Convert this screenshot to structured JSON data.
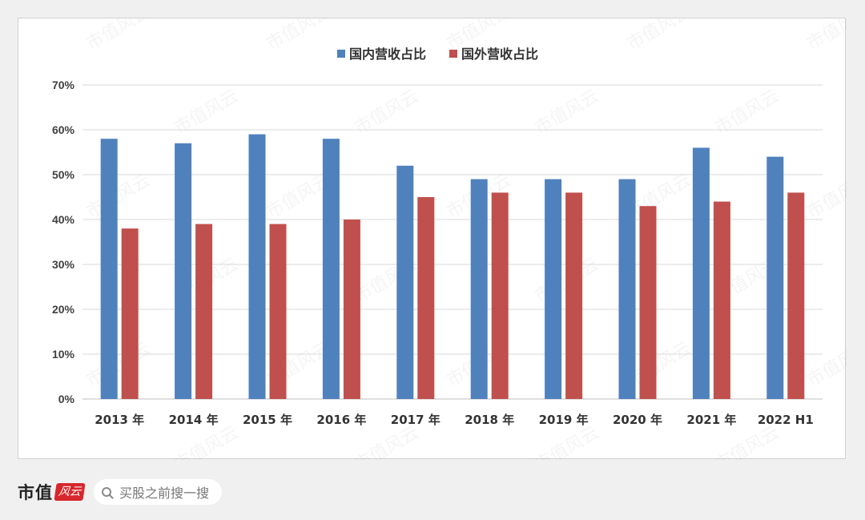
{
  "chart_data": {
    "type": "bar",
    "categories": [
      "2013 年",
      "2014 年",
      "2015 年",
      "2016 年",
      "2017 年",
      "2018 年",
      "2019 年",
      "2020 年",
      "2021 年",
      "2022 H1"
    ],
    "series": [
      {
        "name": "国内营收占比",
        "color": "#4f81bd",
        "values": [
          58,
          57,
          59,
          58,
          52,
          49,
          49,
          49,
          56,
          54
        ]
      },
      {
        "name": "国外营收占比",
        "color": "#c0504d",
        "values": [
          38,
          39,
          39,
          40,
          45,
          46,
          46,
          43,
          44,
          46
        ]
      }
    ],
    "ylim": [
      0,
      70
    ],
    "y_ticks": [
      "0%",
      "10%",
      "20%",
      "30%",
      "40%",
      "50%",
      "60%",
      "70%"
    ],
    "y_tick_values": [
      0,
      10,
      20,
      30,
      40,
      50,
      60,
      70
    ],
    "legend": "top-center",
    "grid": true
  },
  "watermark": "市值风云",
  "footer": {
    "brand": "市值",
    "brand_seal": "风云",
    "search_placeholder": "买股之前搜一搜"
  }
}
